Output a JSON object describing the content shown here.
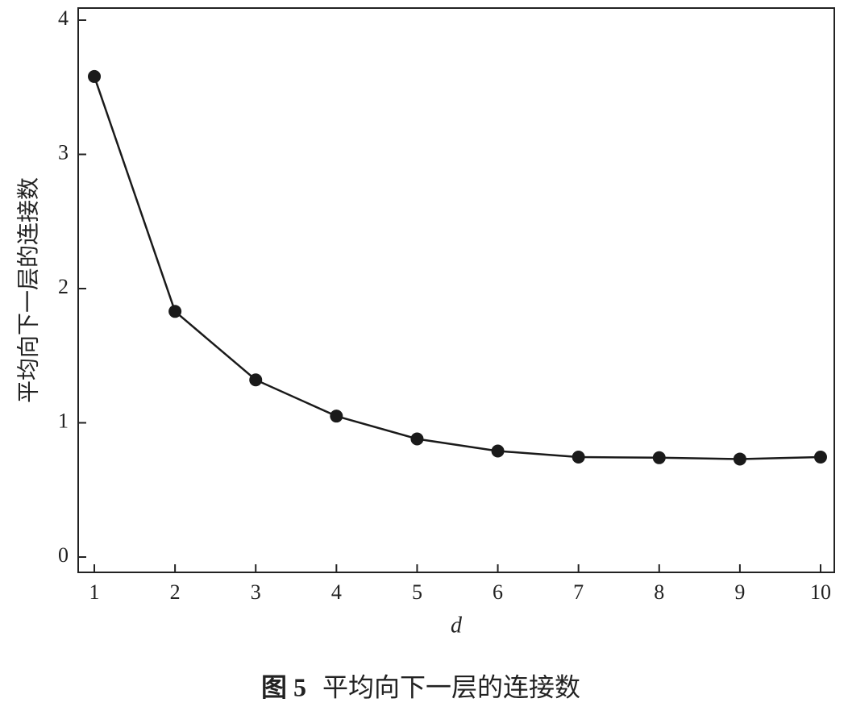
{
  "chart_data": {
    "type": "line",
    "caption_label": "图 5",
    "title": "平均向下一层的连接数",
    "x_label": "d",
    "y_label": "平均向下一层的连接数",
    "x": [
      1,
      2,
      3,
      4,
      5,
      6,
      7,
      8,
      9,
      10
    ],
    "series": [
      {
        "color": "#1a1a1a",
        "values": [
          3.58,
          1.83,
          1.32,
          1.05,
          0.88,
          0.79,
          0.745,
          0.74,
          0.73,
          0.745
        ]
      }
    ],
    "xlim": [
      0.8,
      10.17
    ],
    "ylim": [
      -0.114,
      4.09
    ],
    "xticks": [
      1,
      2,
      3,
      4,
      5,
      6,
      7,
      8,
      9,
      10
    ],
    "yticks": [
      0,
      1,
      2,
      3,
      4
    ],
    "marker": "circle"
  }
}
